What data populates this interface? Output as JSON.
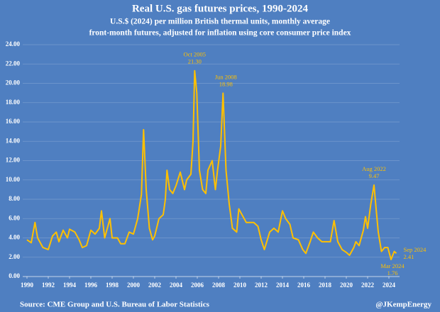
{
  "chart_data": {
    "type": "line",
    "title": "Real U.S. gas futures prices, 1990-2024",
    "subtitle": [
      "U.S.$ (2024) per million British thermal units, monthly average",
      "front-month futures, adjusted for inflation using core consumer price index"
    ],
    "source": "Source: CME Group and U.S. Bureau of Labor Statistics",
    "credit": "@JKempEnergy",
    "xlim": [
      1989.6,
      2025
    ],
    "ylim": [
      0,
      24
    ],
    "xticks": [
      1990,
      1992,
      1994,
      1996,
      1998,
      2000,
      2002,
      2004,
      2006,
      2008,
      2010,
      2012,
      2014,
      2016,
      2018,
      2020,
      2022,
      2024
    ],
    "yticks": [
      {
        "value": 0,
        "label": "0.00"
      },
      {
        "value": 2,
        "label": "2.00"
      },
      {
        "value": 4,
        "label": "4.00"
      },
      {
        "value": 6,
        "label": "6.00"
      },
      {
        "value": 8,
        "label": "8.00"
      },
      {
        "value": 10,
        "label": "10.00"
      },
      {
        "value": 12,
        "label": "12.00"
      },
      {
        "value": 14,
        "label": "14.00"
      },
      {
        "value": 16,
        "label": "16.00"
      },
      {
        "value": 18,
        "label": "18.00"
      },
      {
        "value": 20,
        "label": "20.00"
      },
      {
        "value": 22,
        "label": "22.00"
      },
      {
        "value": 24,
        "label": "24.00"
      }
    ],
    "grid": true,
    "series": [
      {
        "color": "#ffc000",
        "x": [
          1990,
          1990.4,
          1990.75,
          1991,
          1991.5,
          1992,
          1992.4,
          1992.75,
          1993,
          1993.4,
          1993.8,
          1994,
          1994.5,
          1994.9,
          1995.2,
          1995.6,
          1996,
          1996.4,
          1996.8,
          1997,
          1997.3,
          1997.8,
          1998,
          1998.5,
          1998.8,
          1999.2,
          1999.6,
          2000,
          2000.4,
          2000.75,
          2000.95,
          2001.2,
          2001.5,
          2001.8,
          2002,
          2002.4,
          2002.8,
          2003,
          2003.15,
          2003.4,
          2003.7,
          2004,
          2004.4,
          2004.8,
          2005,
          2005.4,
          2005.6,
          2005.75,
          2005.95,
          2006.2,
          2006.5,
          2006.8,
          2007,
          2007.4,
          2007.7,
          2007.9,
          2008.2,
          2008.42,
          2008.7,
          2009,
          2009.3,
          2009.7,
          2009.9,
          2010.2,
          2010.6,
          2010.9,
          2011.3,
          2011.7,
          2012,
          2012.3,
          2012.8,
          2013.2,
          2013.6,
          2014,
          2014.3,
          2014.7,
          2015,
          2015.5,
          2015.9,
          2016.2,
          2016.6,
          2016.9,
          2017.3,
          2017.7,
          2018,
          2018.5,
          2018.85,
          2019.2,
          2019.6,
          2020,
          2020.3,
          2020.7,
          2020.9,
          2021.2,
          2021.6,
          2021.8,
          2022,
          2022.3,
          2022.6,
          2022.8,
          2023,
          2023.3,
          2023.6,
          2023.9,
          2024.2,
          2024.5,
          2024.7
        ],
        "values": [
          3.8,
          3.5,
          5.6,
          4.0,
          3.0,
          2.8,
          4.2,
          4.6,
          3.6,
          4.8,
          4.0,
          4.9,
          4.6,
          3.8,
          3.0,
          3.2,
          4.8,
          4.4,
          5.0,
          6.8,
          4.0,
          6.0,
          4.0,
          4.0,
          3.4,
          3.4,
          4.6,
          4.4,
          6.0,
          8.5,
          15.2,
          9.0,
          5.0,
          3.8,
          4.2,
          6.0,
          6.4,
          8.0,
          11.0,
          9.0,
          8.6,
          9.4,
          10.8,
          9.0,
          10.0,
          10.6,
          14.0,
          21.3,
          19.0,
          11.0,
          9.0,
          8.6,
          11.0,
          12.0,
          9.0,
          11.0,
          13.5,
          18.98,
          11.0,
          7.5,
          5.0,
          4.6,
          7.0,
          6.4,
          5.6,
          5.6,
          5.6,
          5.2,
          3.8,
          2.8,
          4.6,
          5.0,
          4.6,
          6.8,
          6.0,
          5.4,
          4.0,
          3.8,
          2.8,
          2.4,
          3.6,
          4.6,
          4.0,
          3.6,
          3.6,
          3.6,
          5.8,
          3.6,
          2.8,
          2.5,
          2.2,
          3.0,
          3.6,
          3.2,
          4.8,
          6.2,
          5.0,
          7.5,
          9.47,
          7.0,
          4.6,
          2.6,
          3.0,
          3.0,
          1.76,
          2.6,
          2.41
        ]
      }
    ],
    "annotations": [
      {
        "label": "Oct 2005",
        "x": 2005.75,
        "value": 21.3,
        "value_label": "21.30"
      },
      {
        "label": "Jun 2008",
        "x": 2008.42,
        "value": 18.98,
        "value_label": "18.98"
      },
      {
        "label": "Aug 2022",
        "x": 2022.6,
        "value": 9.47,
        "value_label": "9.47"
      },
      {
        "label": "Sep 2024",
        "x": 2024.7,
        "value": 2.41,
        "value_label": "2.41"
      },
      {
        "label": "Mar 2024",
        "x": 2024.2,
        "value": 1.76,
        "value_label": "1.76"
      }
    ]
  }
}
